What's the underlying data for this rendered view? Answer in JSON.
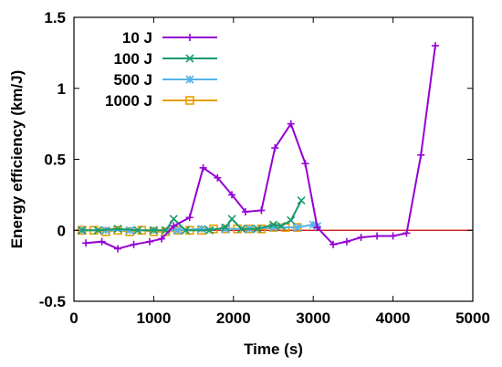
{
  "chart_data": {
    "type": "line",
    "xlabel": "Time (s)",
    "ylabel": "Energy efficiency (km/J)",
    "xlim": [
      0,
      5000
    ],
    "ylim": [
      -0.5,
      1.5
    ],
    "xticks": [
      0,
      1000,
      2000,
      3000,
      4000,
      5000
    ],
    "yticks": [
      -0.5,
      0,
      0.5,
      1,
      1.5
    ],
    "xtick_labels": [
      "0",
      "1000",
      "2000",
      "3000",
      "4000",
      "5000"
    ],
    "ytick_labels": [
      "-0.5",
      "0",
      "0.5",
      "1",
      "1.5"
    ],
    "grid": false,
    "legend_position": "top-left",
    "reference_line": {
      "y": 0,
      "color": "#cc0000"
    },
    "series": [
      {
        "name": "10 J",
        "color": "#9400d3",
        "marker": "plus",
        "points": [
          [
            150,
            -0.09
          ],
          [
            350,
            -0.08
          ],
          [
            550,
            -0.13
          ],
          [
            750,
            -0.1
          ],
          [
            950,
            -0.08
          ],
          [
            1100,
            -0.06
          ],
          [
            1250,
            0.03
          ],
          [
            1450,
            0.09
          ],
          [
            1620,
            0.44
          ],
          [
            1800,
            0.37
          ],
          [
            1980,
            0.25
          ],
          [
            2150,
            0.13
          ],
          [
            2350,
            0.14
          ],
          [
            2520,
            0.58
          ],
          [
            2720,
            0.75
          ],
          [
            2900,
            0.47
          ],
          [
            3050,
            0.02
          ],
          [
            3250,
            -0.1
          ],
          [
            3420,
            -0.08
          ],
          [
            3600,
            -0.05
          ],
          [
            3800,
            -0.04
          ],
          [
            4000,
            -0.04
          ],
          [
            4170,
            -0.02
          ],
          [
            4350,
            0.53
          ],
          [
            4530,
            1.3
          ]
        ]
      },
      {
        "name": "100 J",
        "color": "#1a9b6c",
        "marker": "cross",
        "points": [
          [
            100,
            0.0
          ],
          [
            300,
            0.0
          ],
          [
            550,
            0.01
          ],
          [
            800,
            0.0
          ],
          [
            1000,
            0.0
          ],
          [
            1150,
            0.0
          ],
          [
            1250,
            0.08
          ],
          [
            1400,
            0.0
          ],
          [
            1700,
            0.0
          ],
          [
            1900,
            0.02
          ],
          [
            1980,
            0.08
          ],
          [
            2100,
            0.01
          ],
          [
            2300,
            0.01
          ],
          [
            2500,
            0.04
          ],
          [
            2600,
            0.03
          ],
          [
            2720,
            0.07
          ],
          [
            2850,
            0.21
          ]
        ]
      },
      {
        "name": "500 J",
        "color": "#56b4e9",
        "marker": "star",
        "points": [
          [
            100,
            0.0
          ],
          [
            400,
            0.0
          ],
          [
            700,
            0.0
          ],
          [
            1000,
            0.0
          ],
          [
            1300,
            0.0
          ],
          [
            1600,
            0.01
          ],
          [
            1900,
            0.01
          ],
          [
            2200,
            0.01
          ],
          [
            2500,
            0.02
          ],
          [
            2800,
            0.02
          ],
          [
            3000,
            0.04
          ],
          [
            3050,
            0.03
          ]
        ]
      },
      {
        "name": "1000 J",
        "color": "#e69f00",
        "marker": "square",
        "points": [
          [
            100,
            0.0
          ],
          [
            250,
            0.0
          ],
          [
            400,
            -0.01
          ],
          [
            550,
            0.0
          ],
          [
            700,
            -0.01
          ],
          [
            850,
            0.0
          ],
          [
            1000,
            -0.01
          ],
          [
            1150,
            -0.01
          ],
          [
            1300,
            0.0
          ],
          [
            1450,
            0.0
          ],
          [
            1600,
            0.0
          ],
          [
            1750,
            0.01
          ],
          [
            1900,
            0.01
          ],
          [
            2050,
            0.01
          ],
          [
            2200,
            0.01
          ],
          [
            2350,
            0.01
          ],
          [
            2500,
            0.02
          ],
          [
            2650,
            0.02
          ],
          [
            2800,
            0.02
          ]
        ]
      }
    ]
  }
}
